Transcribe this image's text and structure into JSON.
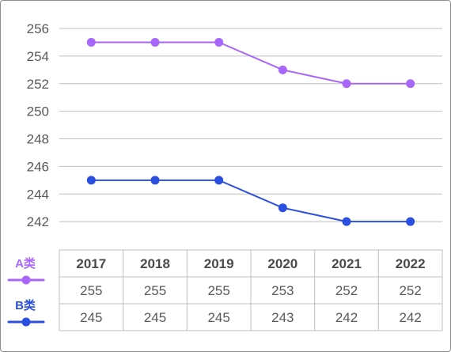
{
  "chart_data": {
    "type": "line",
    "categories": [
      "2017",
      "2018",
      "2019",
      "2020",
      "2021",
      "2022"
    ],
    "ylim": [
      240,
      256
    ],
    "yticks": [
      "256",
      "254",
      "252",
      "250",
      "248",
      "246",
      "244",
      "242"
    ],
    "grid": true,
    "legend_placement": "left, beside table",
    "series": [
      {
        "name": "A类",
        "color": "#A966FA",
        "values": [
          255,
          255,
          255,
          253,
          252,
          252
        ]
      },
      {
        "name": "B类",
        "color": "#2B4FE0",
        "values": [
          245,
          245,
          245,
          243,
          242,
          242
        ]
      }
    ],
    "table": {
      "rows": [
        [
          "255",
          "255",
          "255",
          "253",
          "252",
          "252"
        ],
        [
          "245",
          "245",
          "245",
          "243",
          "242",
          "242"
        ]
      ]
    }
  }
}
